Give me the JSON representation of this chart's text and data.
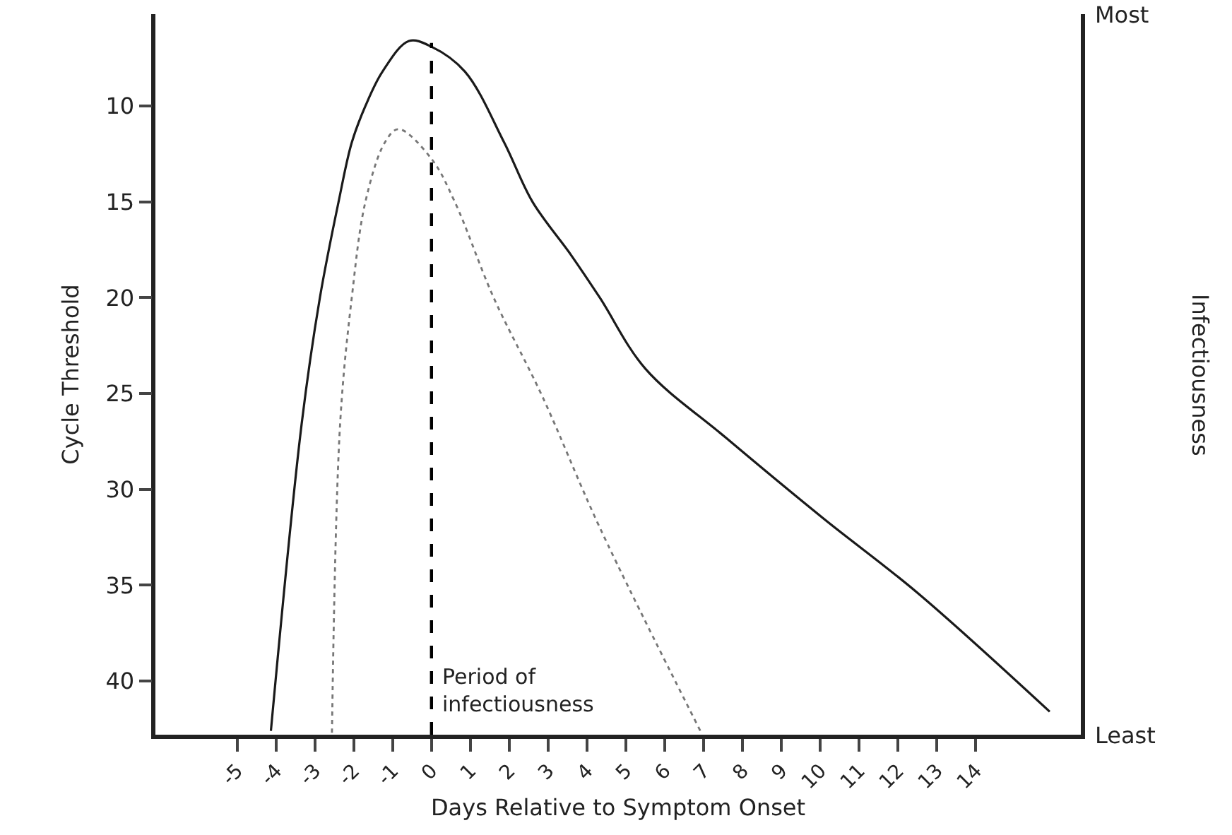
{
  "chart_data": {
    "type": "line",
    "xlabel": "Days Relative to Symptom Onset",
    "ylabel": "Cycle Threshold",
    "y2label": "Infectiousness",
    "xlim": [
      -7.1,
      16.7
    ],
    "xticks": [
      -5,
      -4,
      -3,
      -2,
      -1,
      0,
      1,
      2,
      3,
      4,
      5,
      6,
      7,
      8,
      9,
      10,
      11,
      12,
      13,
      14
    ],
    "ylim": [
      42.8,
      5.2
    ],
    "yticks": [
      10,
      15,
      20,
      25,
      30,
      35,
      40
    ],
    "annotations": [
      "Most",
      "Least"
    ],
    "marker": "none",
    "series": [
      {
        "color": "#1a1a1a",
        "line_style": "solid",
        "x": [
          -4.13,
          -3.34,
          -2.87,
          -2.39,
          -2.05,
          -1.7,
          -1.26,
          -0.58,
          0,
          0.86,
          1.87,
          2.6,
          3.6,
          4.33,
          5.5,
          7.57,
          10.07,
          12.5,
          15.9
        ],
        "values": [
          42.6,
          26.6,
          20,
          15,
          11.9,
          10,
          8.2,
          6.6,
          6.9,
          8.2,
          11.9,
          15,
          17.8,
          20,
          23.7,
          27.3,
          31.5,
          35.4,
          41.6
        ]
      },
      {
        "color": "#777777",
        "line_style": "dotted",
        "x": [
          -2.56,
          -2.35,
          -2.05,
          -1.7,
          -1.2,
          -0.85,
          0,
          0.6,
          1.6,
          2.84,
          4.33,
          6.94
        ],
        "values": [
          42.7,
          26.6,
          20,
          15,
          11.9,
          11.2,
          12.75,
          15,
          20,
          25.1,
          32,
          42.7
        ]
      }
    ],
    "ref_lines": [
      {
        "axis": "x",
        "value": 0,
        "label": "Period of\ninfectiousness",
        "color": "#000000",
        "line_style": "dashed"
      }
    ]
  }
}
